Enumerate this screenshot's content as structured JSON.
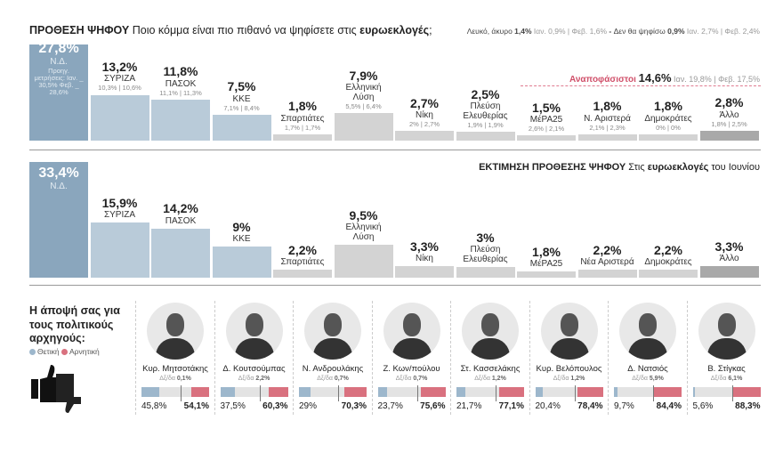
{
  "chart_data": [
    {
      "type": "bar",
      "title": "ΠΡΟΘΕΣΗ ΨΗΦΟΥ",
      "subtitle_pre": "Ποιο κόμμα είναι πιο πιθανό να ψηφίσετε στις ",
      "subtitle_bold": "ευρωεκλογές",
      "subtitle_post": ";",
      "note": {
        "blank_label": "Λευκό, άκυρο ",
        "blank_value": "1,4%",
        "blank_prev": "Ιαν. 0,9% | Φεβ. 1,6%",
        "sep": " - ",
        "novote_label": "Δεν θα ψηφίσω ",
        "novote_value": "0,9%",
        "novote_prev": "Ιαν. 2,7% | Φεβ. 2,4%"
      },
      "undecided": {
        "label": "Αναποφάσιστοι ",
        "value": "14,6%",
        "prev": "Ιαν. 19,8% | Φεβ. 17,5%"
      },
      "categories": [
        "Ν.Δ.",
        "ΣΥΡΙΖΑ",
        "ΠΑΣΟΚ",
        "ΚΚΕ",
        "Σπαρτιάτες",
        "Ελληνική Λύση",
        "Νίκη",
        "Πλεύση Ελευθερίας",
        "ΜέΡΑ25",
        "Ν. Αριστερά",
        "Δημοκράτες",
        "Άλλο"
      ],
      "values": [
        27.8,
        13.2,
        11.8,
        7.5,
        1.8,
        7.9,
        2.7,
        2.5,
        1.5,
        1.8,
        1.8,
        2.8
      ],
      "labels": [
        "27,8%",
        "13,2%",
        "11,8%",
        "7,5%",
        "1,8%",
        "7,9%",
        "2,7%",
        "2,5%",
        "1,5%",
        "1,8%",
        "1,8%",
        "2,8%"
      ],
      "previous": [
        "Προηγ. μετρήσεις: Ιαν. _ 30,5% Φεβ. _ 28,6%",
        "10,3% | 10,6%",
        "11,1% | 11,3%",
        "7,1% | 8,4%",
        "1,7% | 1,7%",
        "5,5% | 6,4%",
        "2% | 2,7%",
        "1,9% | 1,9%",
        "2,6% | 2,1%",
        "2,1% | 2,3%",
        "0% | 0%",
        "1,8% | 2,5%"
      ]
    },
    {
      "type": "bar",
      "title": "ΕΚΤΙΜΗΣΗ ΠΡΟΘΕΣΗΣ ΨΗΦΟΥ",
      "subtitle_pre": "Στις ",
      "subtitle_bold": "ευρωεκλογές",
      "subtitle_post": " του Ιουνίου",
      "categories": [
        "Ν.Δ.",
        "ΣΥΡΙΖΑ",
        "ΠΑΣΟΚ",
        "ΚΚΕ",
        "Σπαρτιάτες",
        "Ελληνική Λύση",
        "Νίκη",
        "Πλεύση Ελευθερίας",
        "ΜέΡΑ25",
        "Νέα Αριστερά",
        "Δημοκράτες",
        "Άλλο"
      ],
      "values": [
        33.4,
        15.9,
        14.2,
        9,
        2.2,
        9.5,
        3.3,
        3,
        1.8,
        2.2,
        2.2,
        3.3
      ],
      "labels": [
        "33,4%",
        "15,9%",
        "14,2%",
        "9%",
        "2,2%",
        "9,5%",
        "3,3%",
        "3%",
        "1,8%",
        "2,2%",
        "2,2%",
        "3,3%"
      ]
    },
    {
      "type": "bar",
      "title": "Η άποψή σας για τους πολιτικούς αρχηγούς:",
      "legend": [
        "Θετική",
        "Αρνητική"
      ],
      "leaders": [
        {
          "name": "Κυρ. Μητσοτάκης",
          "dk": "0,1%",
          "pos": 45.8,
          "neg": 54.1,
          "pos_label": "45,8%",
          "neg_label": "54,1%"
        },
        {
          "name": "Δ. Κουτσούμπας",
          "dk": "2,2%",
          "pos": 37.5,
          "neg": 60.3,
          "pos_label": "37,5%",
          "neg_label": "60,3%"
        },
        {
          "name": "Ν. Ανδρουλάκης",
          "dk": "0,7%",
          "pos": 29,
          "neg": 70.3,
          "pos_label": "29%",
          "neg_label": "70,3%"
        },
        {
          "name": "Ζ. Κων/πούλου",
          "dk": "0,7%",
          "pos": 23.7,
          "neg": 75.6,
          "pos_label": "23,7%",
          "neg_label": "75,6%"
        },
        {
          "name": "Στ. Κασσελάκης",
          "dk": "1,2%",
          "pos": 21.7,
          "neg": 77.1,
          "pos_label": "21,7%",
          "neg_label": "77,1%"
        },
        {
          "name": "Κυρ. Βελόπουλος",
          "dk": "1,2%",
          "pos": 20.4,
          "neg": 78.4,
          "pos_label": "20,4%",
          "neg_label": "78,4%"
        },
        {
          "name": "Δ. Νατσιός",
          "dk": "5,9%",
          "pos": 9.7,
          "neg": 84.4,
          "pos_label": "9,7%",
          "neg_label": "84,4%"
        },
        {
          "name": "Β. Στίγκας",
          "dk": "6,1%",
          "pos": 5.6,
          "neg": 88.3,
          "pos_label": "5,6%",
          "neg_label": "88,3%"
        }
      ],
      "dk_label": "Δξ/δα "
    }
  ],
  "colors": {
    "nd": "#8aa6bd",
    "blue": "#b9cbd9",
    "grey": "#d3d3d3",
    "other": "#a9a9a9",
    "positive": "#9db7cc",
    "negative": "#d9717f",
    "undecided": "#d0506a"
  }
}
